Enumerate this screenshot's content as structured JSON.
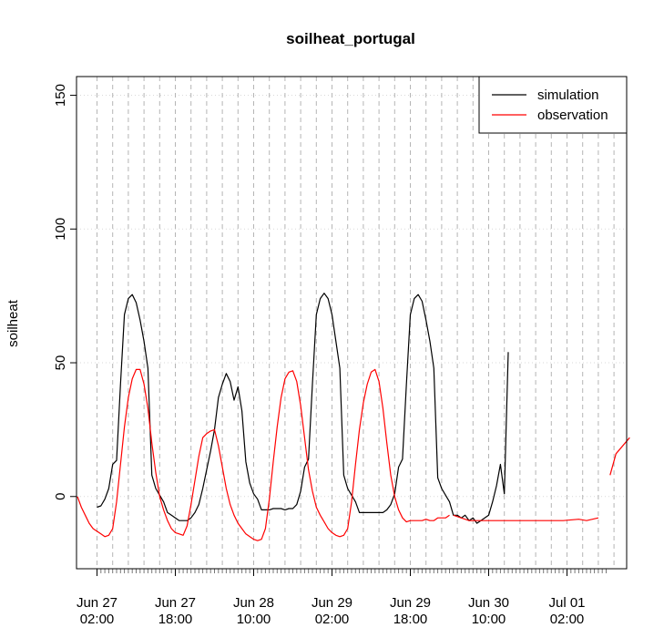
{
  "chart_data": {
    "type": "line",
    "title": "soilheat_portugal",
    "ylabel": "soilheat",
    "xlabel": "",
    "ylim": [
      -27,
      157
    ],
    "yticks": [
      0,
      50,
      100,
      150
    ],
    "xlim": [
      0,
      141
    ],
    "grid": true,
    "legend_position": "top-right",
    "x_tick_labels": [
      {
        "x": 5,
        "line1": "Jun 27",
        "line2": "02:00"
      },
      {
        "x": 25,
        "line1": "Jun 27",
        "line2": "18:00"
      },
      {
        "x": 45,
        "line1": "Jun 28",
        "line2": "10:00"
      },
      {
        "x": 65,
        "line1": "Jun 29",
        "line2": "02:00"
      },
      {
        "x": 85,
        "line1": "Jun 29",
        "line2": "18:00"
      },
      {
        "x": 105,
        "line1": "Jun 30",
        "line2": "10:00"
      },
      {
        "x": 125,
        "line1": "Jul 01",
        "line2": "02:00"
      }
    ],
    "series": [
      {
        "name": "simulation",
        "color": "#000000",
        "points": [
          [
            5,
            -4
          ],
          [
            6,
            -3.5
          ],
          [
            7,
            -1
          ],
          [
            8,
            3
          ],
          [
            9,
            12
          ],
          [
            10,
            13.5
          ],
          [
            11,
            42
          ],
          [
            12,
            68
          ],
          [
            13,
            74
          ],
          [
            14,
            75.5
          ],
          [
            15,
            72.5
          ],
          [
            16,
            66
          ],
          [
            17,
            58
          ],
          [
            18,
            48
          ],
          [
            19,
            8
          ],
          [
            20,
            3
          ],
          [
            21,
            0.5
          ],
          [
            22,
            -2
          ],
          [
            23,
            -6
          ],
          [
            24,
            -7
          ],
          [
            25,
            -8
          ],
          [
            26,
            -9
          ],
          [
            27,
            -9
          ],
          [
            28,
            -9
          ],
          [
            29,
            -8
          ],
          [
            30,
            -6
          ],
          [
            31,
            -3
          ],
          [
            32,
            3
          ],
          [
            33,
            10
          ],
          [
            34,
            17
          ],
          [
            35,
            25
          ],
          [
            36,
            37
          ],
          [
            37,
            42
          ],
          [
            38,
            46
          ],
          [
            39,
            43
          ],
          [
            40,
            36
          ],
          [
            41,
            41
          ],
          [
            42,
            32
          ],
          [
            43,
            13
          ],
          [
            44,
            5
          ],
          [
            45,
            1
          ],
          [
            46,
            -1
          ],
          [
            47,
            -5
          ],
          [
            48,
            -5
          ],
          [
            49,
            -5
          ],
          [
            50,
            -4.5
          ],
          [
            51,
            -4.5
          ],
          [
            52,
            -4.5
          ],
          [
            53,
            -5
          ],
          [
            54,
            -4.5
          ],
          [
            55,
            -4.5
          ],
          [
            56,
            -3
          ],
          [
            57,
            2
          ],
          [
            58,
            11
          ],
          [
            59,
            14
          ],
          [
            60,
            42
          ],
          [
            61,
            68
          ],
          [
            62,
            74
          ],
          [
            63,
            76
          ],
          [
            64,
            74
          ],
          [
            65,
            68
          ],
          [
            66,
            58
          ],
          [
            67,
            48
          ],
          [
            68,
            8
          ],
          [
            69,
            3
          ],
          [
            70,
            0.5
          ],
          [
            71,
            -2
          ],
          [
            72,
            -6
          ],
          [
            73,
            -6
          ],
          [
            74,
            -6
          ],
          [
            75,
            -6
          ],
          [
            76,
            -6
          ],
          [
            77,
            -6
          ],
          [
            78,
            -6
          ],
          [
            79,
            -5
          ],
          [
            80,
            -3
          ],
          [
            81,
            1
          ],
          [
            82,
            11
          ],
          [
            83,
            14
          ],
          [
            84,
            42
          ],
          [
            85,
            68
          ],
          [
            86,
            74
          ],
          [
            87,
            75.5
          ],
          [
            88,
            73
          ],
          [
            89,
            66
          ],
          [
            90,
            58
          ],
          [
            91,
            48
          ],
          [
            92,
            7
          ],
          [
            93,
            3
          ],
          [
            94,
            0.5
          ],
          [
            95,
            -2
          ],
          [
            96,
            -7
          ],
          [
            97,
            -7
          ],
          [
            98,
            -8
          ],
          [
            99,
            -7
          ],
          [
            100,
            -9
          ],
          [
            101,
            -8
          ],
          [
            102,
            -10
          ],
          [
            103,
            -9
          ],
          [
            104,
            -8
          ],
          [
            105,
            -7
          ],
          [
            106,
            -2
          ],
          [
            107,
            4
          ],
          [
            108,
            12
          ],
          [
            109,
            1
          ],
          [
            110,
            54
          ]
        ]
      },
      {
        "name": "observation",
        "color": "#ff0000",
        "points": [
          [
            0,
            0
          ],
          [
            1,
            -4
          ],
          [
            2,
            -7
          ],
          [
            3,
            -10
          ],
          [
            4,
            -12
          ],
          [
            5,
            -13
          ],
          [
            6,
            -14
          ],
          [
            7,
            -15
          ],
          [
            8,
            -14.5
          ],
          [
            9,
            -12
          ],
          [
            10,
            -2
          ],
          [
            11,
            12
          ],
          [
            12,
            26
          ],
          [
            13,
            37
          ],
          [
            14,
            44
          ],
          [
            15,
            47.5
          ],
          [
            16,
            47.5
          ],
          [
            17,
            42
          ],
          [
            18,
            33
          ],
          [
            19,
            20
          ],
          [
            20,
            9
          ],
          [
            21,
            0
          ],
          [
            22,
            -5
          ],
          [
            23,
            -9
          ],
          [
            24,
            -12
          ],
          [
            25,
            -13.5
          ],
          [
            26,
            -14
          ],
          [
            27,
            -14.5
          ],
          [
            28,
            -11
          ],
          [
            29,
            -3
          ],
          [
            30,
            6
          ],
          [
            31,
            15
          ],
          [
            32,
            22
          ],
          [
            33,
            23.5
          ],
          [
            34,
            24.5
          ],
          [
            35,
            25
          ],
          [
            36,
            19
          ],
          [
            37,
            11
          ],
          [
            38,
            3
          ],
          [
            39,
            -3
          ],
          [
            40,
            -7
          ],
          [
            41,
            -10
          ],
          [
            42,
            -12
          ],
          [
            43,
            -14
          ],
          [
            44,
            -15
          ],
          [
            45,
            -16
          ],
          [
            46,
            -16.5
          ],
          [
            47,
            -16
          ],
          [
            48,
            -12
          ],
          [
            49,
            -1
          ],
          [
            50,
            13
          ],
          [
            51,
            26
          ],
          [
            52,
            37
          ],
          [
            53,
            44
          ],
          [
            54,
            46.5
          ],
          [
            55,
            47
          ],
          [
            56,
            43
          ],
          [
            57,
            34
          ],
          [
            58,
            22
          ],
          [
            59,
            10
          ],
          [
            60,
            2
          ],
          [
            61,
            -4
          ],
          [
            62,
            -7
          ],
          [
            63,
            -9.5
          ],
          [
            64,
            -12
          ],
          [
            65,
            -13.5
          ],
          [
            66,
            -14.5
          ],
          [
            67,
            -15
          ],
          [
            68,
            -14.5
          ],
          [
            69,
            -12
          ],
          [
            70,
            -2
          ],
          [
            71,
            12
          ],
          [
            72,
            25
          ],
          [
            73,
            35
          ],
          [
            74,
            42
          ],
          [
            75,
            46.5
          ],
          [
            76,
            47.5
          ],
          [
            77,
            43
          ],
          [
            78,
            33
          ],
          [
            79,
            20
          ],
          [
            80,
            8
          ],
          [
            81,
            0
          ],
          [
            82,
            -5
          ],
          [
            83,
            -8
          ],
          [
            84,
            -9.5
          ],
          [
            85,
            -9
          ],
          [
            86,
            -9
          ],
          [
            87,
            -9
          ],
          [
            88,
            -9
          ],
          [
            89,
            -8.5
          ],
          [
            90,
            -9
          ],
          [
            91,
            -9
          ],
          [
            92,
            -8
          ],
          [
            93,
            -8
          ],
          [
            94,
            -8
          ],
          [
            95,
            -7
          ],
          [
            96,
            null
          ],
          [
            97,
            null
          ],
          [
            98,
            null
          ],
          [
            99,
            null
          ],
          [
            100,
            null
          ],
          [
            101,
            null
          ],
          [
            102,
            null
          ],
          [
            103,
            null
          ],
          [
            104,
            null
          ],
          [
            105,
            null
          ],
          [
            106,
            null
          ],
          [
            107,
            null
          ],
          [
            108,
            null
          ],
          [
            109,
            null
          ],
          [
            110,
            null
          ]
        ]
      }
    ]
  }
}
